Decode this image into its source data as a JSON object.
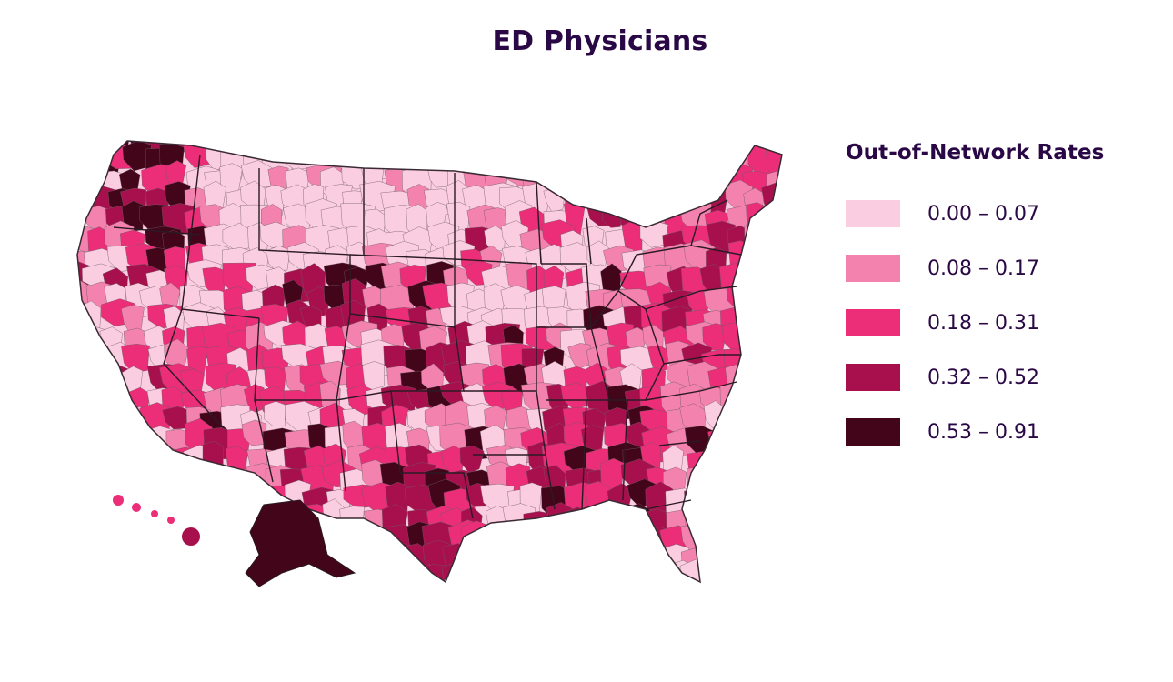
{
  "title": "ED Physicians",
  "legend": {
    "title": "Out-of-Network Rates",
    "items": [
      {
        "label": "0.00 – 0.07",
        "color": "#fbcde1"
      },
      {
        "label": "0.08 – 0.17",
        "color": "#f382ae"
      },
      {
        "label": "0.18 – 0.31",
        "color": "#ec2d78"
      },
      {
        "label": "0.32 – 0.52",
        "color": "#a8104d"
      },
      {
        "label": "0.53 – 0.91",
        "color": "#420519"
      }
    ]
  },
  "map": {
    "region": "United States",
    "boundary_color": "#3a2a34"
  }
}
